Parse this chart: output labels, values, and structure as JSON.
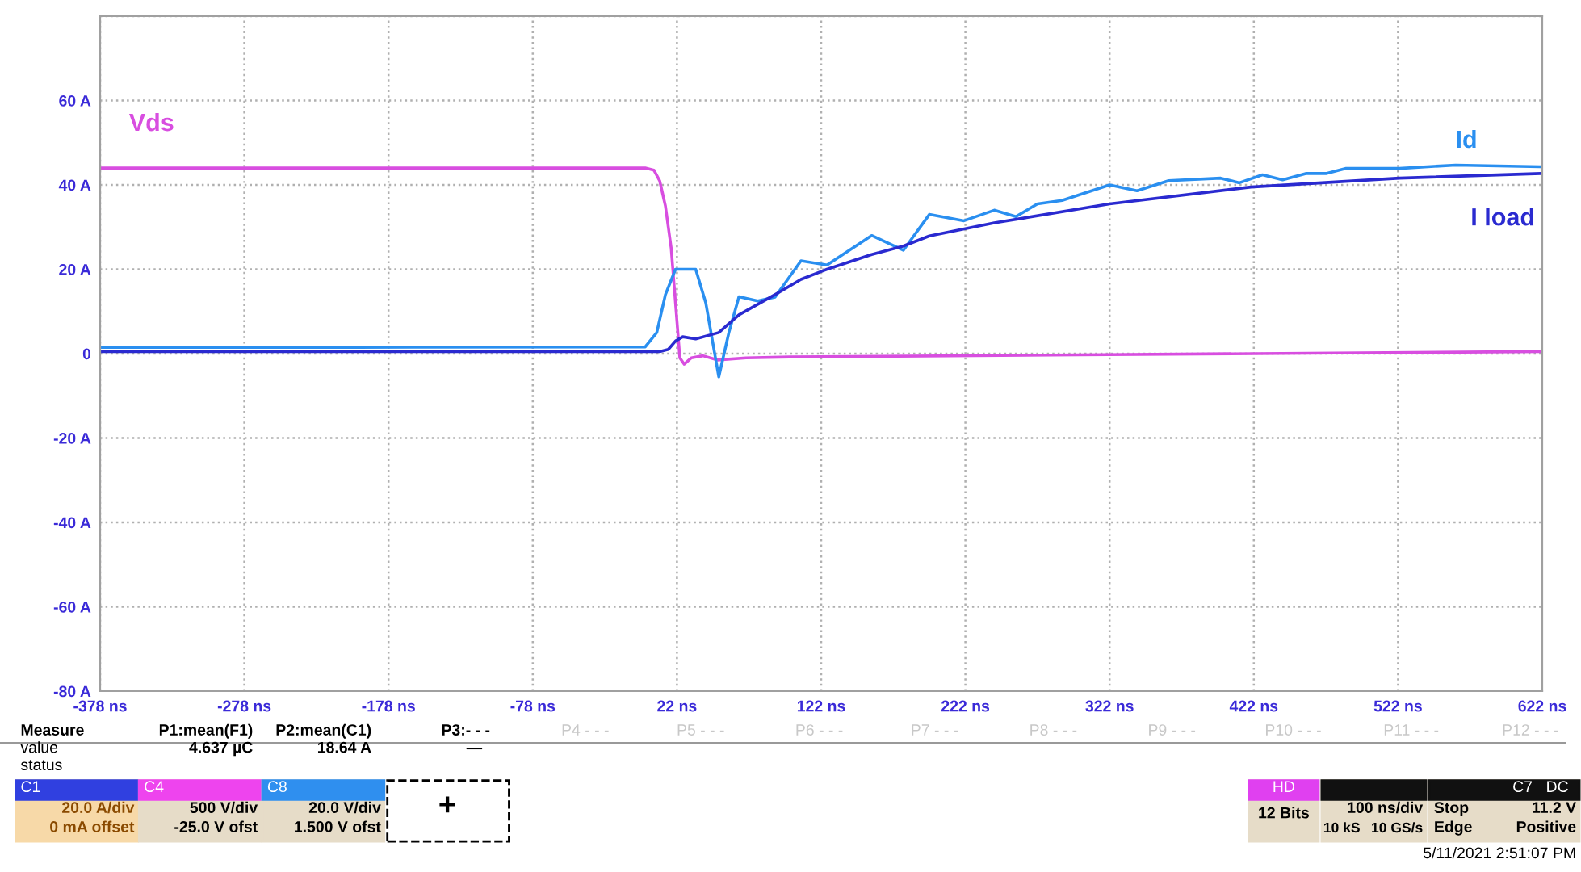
{
  "chart_data": {
    "type": "line",
    "xlim": [
      -378,
      622
    ],
    "ylim": [
      -80,
      80
    ],
    "xticks": [
      {
        "value": -378,
        "label": "-378 ns"
      },
      {
        "value": -278,
        "label": "-278 ns"
      },
      {
        "value": -178,
        "label": "-178 ns"
      },
      {
        "value": -78,
        "label": "-78 ns"
      },
      {
        "value": 22,
        "label": "22 ns"
      },
      {
        "value": 122,
        "label": "122 ns"
      },
      {
        "value": 222,
        "label": "222 ns"
      },
      {
        "value": 322,
        "label": "322 ns"
      },
      {
        "value": 422,
        "label": "422 ns"
      },
      {
        "value": 522,
        "label": "522 ns"
      },
      {
        "value": 622,
        "label": "622 ns"
      }
    ],
    "yticks": [
      {
        "value": -80,
        "label": "-80 A"
      },
      {
        "value": -60,
        "label": "-60 A"
      },
      {
        "value": -40,
        "label": "-40 A"
      },
      {
        "value": -20,
        "label": "-20 A"
      },
      0,
      {
        "value": 20,
        "label": "20 A"
      },
      {
        "value": 40,
        "label": "40 A"
      },
      {
        "value": 60,
        "label": "60 A"
      },
      {
        "value": 80,
        "label": null
      }
    ],
    "grid": true,
    "legend": false,
    "series": [
      {
        "name": "Vds",
        "color": "#d84ee0",
        "x": [
          -378,
          0,
          6,
          10,
          14,
          18,
          21,
          24,
          27,
          32,
          40,
          50,
          70,
          100,
          300,
          620
        ],
        "values": [
          44,
          44,
          43.5,
          41,
          35,
          25,
          12,
          -1,
          -2.5,
          -1,
          -0.5,
          -1.5,
          -1,
          -0.8,
          -0.3,
          0.5
        ]
      },
      {
        "name": "Id",
        "color": "#2a8ff0",
        "x": [
          -378,
          -200,
          0,
          8,
          14,
          21,
          35,
          42,
          51,
          58,
          65,
          78,
          90,
          108,
          126,
          157,
          179,
          197,
          221,
          242,
          257,
          272,
          289,
          322,
          341,
          363,
          399,
          412,
          428,
          442,
          458,
          472,
          486,
          523,
          562,
          620
        ],
        "values": [
          1.5,
          1.5,
          1.6,
          5,
          14,
          20,
          20,
          12,
          -5.5,
          5,
          13.5,
          12.5,
          13.4,
          22,
          21,
          28,
          24.5,
          33,
          31.5,
          34,
          32.5,
          35.5,
          36.3,
          40,
          38.6,
          41,
          41.6,
          40.5,
          42.4,
          41.2,
          42.7,
          42.7,
          43.9,
          43.9,
          44.7,
          44.3
        ]
      },
      {
        "name": "I load",
        "color": "#2a2ad0",
        "x": [
          -378,
          -200,
          10,
          16,
          21,
          26,
          35,
          51,
          65,
          90,
          108,
          126,
          157,
          179,
          197,
          242,
          322,
          420,
          523,
          620
        ],
        "values": [
          0.5,
          0.5,
          0.5,
          1,
          3,
          4,
          3.5,
          5,
          9.2,
          14,
          17.6,
          20,
          23.5,
          25.5,
          27.9,
          31,
          35.5,
          39.5,
          41.6,
          42.7
        ]
      }
    ],
    "annotations": [
      "Measure",
      "P1:mean(F1)",
      "P2:mean(C1)",
      "P3:- - -",
      "P4 - - -",
      "P5 - - -",
      "P6 - - -",
      "P7 - - -",
      "P8 - - -",
      "P9 - - -",
      "P10 - - -",
      "P11 - - -",
      "P12 - - -",
      "value",
      "4.637 µC",
      "18.64 A",
      "—",
      "status",
      "C1",
      "C4",
      "C8",
      "20.0 A/div",
      "0 mA offset",
      "500 V/div",
      "-25.0 V ofst",
      "20.0 V/div",
      "1.500 V ofst",
      "+",
      "HD",
      "12 Bits",
      "100 ns/div",
      "10 kS",
      "10 GS/s",
      "C7",
      "DC",
      "Stop",
      "11.2 V",
      "Edge",
      "Positive",
      "5/11/2021 2:51:07 PM"
    ]
  }
}
